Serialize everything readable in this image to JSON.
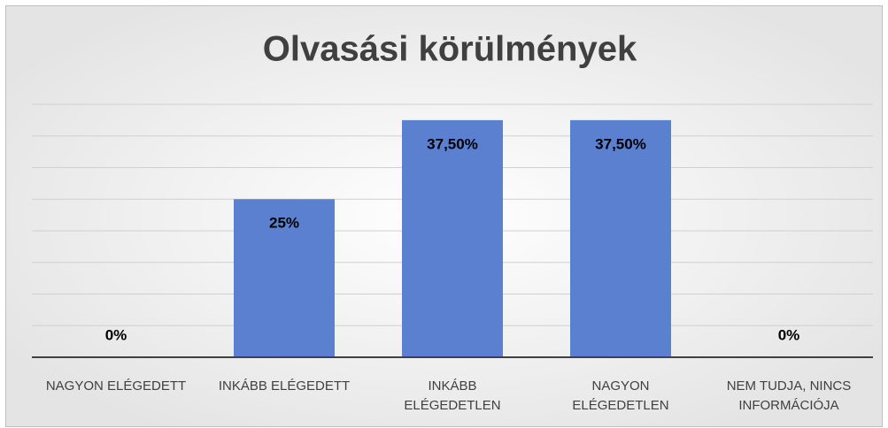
{
  "chart_data": {
    "type": "bar",
    "title": "Olvasási körülmények",
    "categories": [
      "NAGYON ELÉGEDETT",
      "INKÁBB ELÉGEDETT",
      "INKÁBB ELÉGEDETLEN",
      "NAGYON ELÉGEDETLEN",
      "NEM TUDJA, NINCS INFORMÁCIÓJA"
    ],
    "values": [
      0,
      25,
      37.5,
      37.5,
      0
    ],
    "value_labels": [
      "0%",
      "25%",
      "37,50%",
      "37,50%",
      "0%"
    ],
    "color": "#5b80d0",
    "ylim": [
      0,
      40
    ],
    "yticks": [
      0,
      5,
      10,
      15,
      20,
      25,
      30,
      35,
      40
    ],
    "grid": true
  }
}
